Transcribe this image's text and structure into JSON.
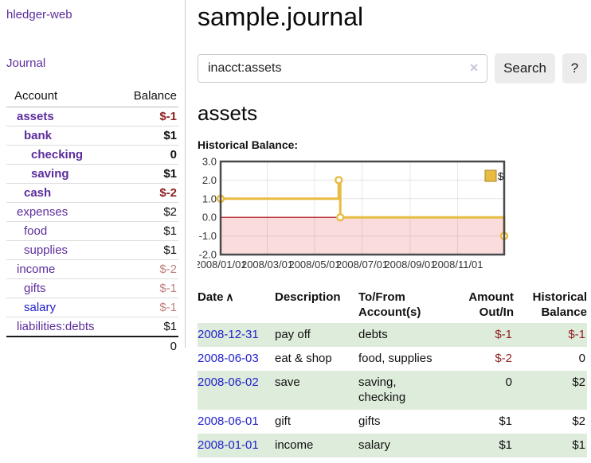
{
  "colors": {
    "link_purple": "#5c2d9c",
    "link_blue": "#2222cc",
    "negative_strong": "#8f1f1f",
    "negative_soft": "#c08080",
    "row_stripe_green": "#deecdb",
    "chart_line_gold": "#e8bc40",
    "chart_negative_fill": "#fbdcdc",
    "chart_zero_line": "#a30000"
  },
  "sidebar": {
    "app_title": "hledger-web",
    "nav": {
      "journal_label": "Journal"
    },
    "table": {
      "account_header": "Account",
      "balance_header": "Balance",
      "rows": [
        {
          "name": "assets",
          "balance": "$-1",
          "level": 1,
          "bold": true,
          "balance_tone": "neg-strong",
          "link_tone": "purple"
        },
        {
          "name": "bank",
          "balance": "$1",
          "level": 2,
          "bold": true,
          "balance_tone": "normal",
          "link_tone": "purple"
        },
        {
          "name": "checking",
          "balance": "0",
          "level": 3,
          "bold": true,
          "balance_tone": "normal",
          "link_tone": "purple"
        },
        {
          "name": "saving",
          "balance": "$1",
          "level": 3,
          "bold": true,
          "balance_tone": "normal",
          "link_tone": "purple"
        },
        {
          "name": "cash",
          "balance": "$-2",
          "level": 2,
          "bold": true,
          "balance_tone": "neg-strong",
          "link_tone": "purple"
        },
        {
          "name": "expenses",
          "balance": "$2",
          "level": 1,
          "bold": false,
          "balance_tone": "normal",
          "link_tone": "purple"
        },
        {
          "name": "food",
          "balance": "$1",
          "level": 2,
          "bold": false,
          "balance_tone": "normal",
          "link_tone": "purple"
        },
        {
          "name": "supplies",
          "balance": "$1",
          "level": 2,
          "bold": false,
          "balance_tone": "normal",
          "link_tone": "purple"
        },
        {
          "name": "income",
          "balance": "$-2",
          "level": 1,
          "bold": false,
          "balance_tone": "neg-soft",
          "link_tone": "purple"
        },
        {
          "name": "gifts",
          "balance": "$-1",
          "level": 2,
          "bold": false,
          "balance_tone": "neg-soft",
          "link_tone": "purple"
        },
        {
          "name": "salary",
          "balance": "$-1",
          "level": 2,
          "bold": false,
          "balance_tone": "neg-soft",
          "link_tone": "blue"
        },
        {
          "name": "liabilities:debts",
          "balance": "$1",
          "level": 1,
          "bold": false,
          "balance_tone": "normal",
          "link_tone": "purple"
        }
      ],
      "total": "0"
    }
  },
  "header": {
    "title": "sample.journal"
  },
  "search": {
    "value": "inacct:assets",
    "clear_icon": "✕",
    "button_label": "Search",
    "help_label": "?"
  },
  "account_page": {
    "heading": "assets",
    "chart_label": "Historical Balance:"
  },
  "chart_data": {
    "type": "line",
    "step": true,
    "title": "Historical Balance",
    "series": [
      {
        "name": "$",
        "color": "#e8bc40",
        "points": [
          [
            "2008-01-01",
            1
          ],
          [
            "2008-06-01",
            2
          ],
          [
            "2008-06-03",
            0
          ],
          [
            "2008-12-31",
            -1
          ]
        ]
      }
    ],
    "x_range": [
      "2008-01-01",
      "2008-12-31"
    ],
    "x_ticks": [
      {
        "date": "2008-01-01",
        "label": "2008/01/01"
      },
      {
        "date": "2008-03-01",
        "label": "2008/03/01"
      },
      {
        "date": "2008-05-01",
        "label": "2008/05/01"
      },
      {
        "date": "2008-07-01",
        "label": "2008/07/01"
      },
      {
        "date": "2008-09-01",
        "label": "2008/09/01"
      },
      {
        "date": "2008-11-01",
        "label": "2008/11/01"
      }
    ],
    "y_ticks": [
      3.0,
      2.0,
      1.0,
      0.0,
      -1.0,
      -2.0
    ],
    "ylim": [
      -2,
      3
    ],
    "grid": true,
    "negative_region_color": "#fbdcdc",
    "zero_line_color": "#a30000",
    "legend": {
      "label": "$",
      "position": "top-right"
    }
  },
  "register": {
    "columns": [
      {
        "label": "Date",
        "align": "left",
        "sort_indicator": "∧"
      },
      {
        "label": "Description",
        "align": "left"
      },
      {
        "label": "To/From Account(s)",
        "align": "left"
      },
      {
        "label": "Amount Out/In",
        "align": "right"
      },
      {
        "label": "Historical Balance",
        "align": "right"
      }
    ],
    "rows": [
      {
        "date": "2008-12-31",
        "description": "pay off",
        "accounts": "debts",
        "amount": "$-1",
        "balance": "$-1",
        "amount_tone": "neg",
        "balance_tone": "neg",
        "striped": true
      },
      {
        "date": "2008-06-03",
        "description": "eat & shop",
        "accounts": "food, supplies",
        "amount": "$-2",
        "balance": "0",
        "amount_tone": "neg",
        "balance_tone": "normal",
        "striped": false
      },
      {
        "date": "2008-06-02",
        "description": "save",
        "accounts": "saving, checking",
        "amount": "0",
        "balance": "$2",
        "amount_tone": "normal",
        "balance_tone": "normal",
        "striped": true
      },
      {
        "date": "2008-06-01",
        "description": "gift",
        "accounts": "gifts",
        "amount": "$1",
        "balance": "$2",
        "amount_tone": "normal",
        "balance_tone": "normal",
        "striped": false
      },
      {
        "date": "2008-01-01",
        "description": "income",
        "accounts": "salary",
        "amount": "$1",
        "balance": "$1",
        "amount_tone": "normal",
        "balance_tone": "normal",
        "striped": true
      }
    ]
  }
}
